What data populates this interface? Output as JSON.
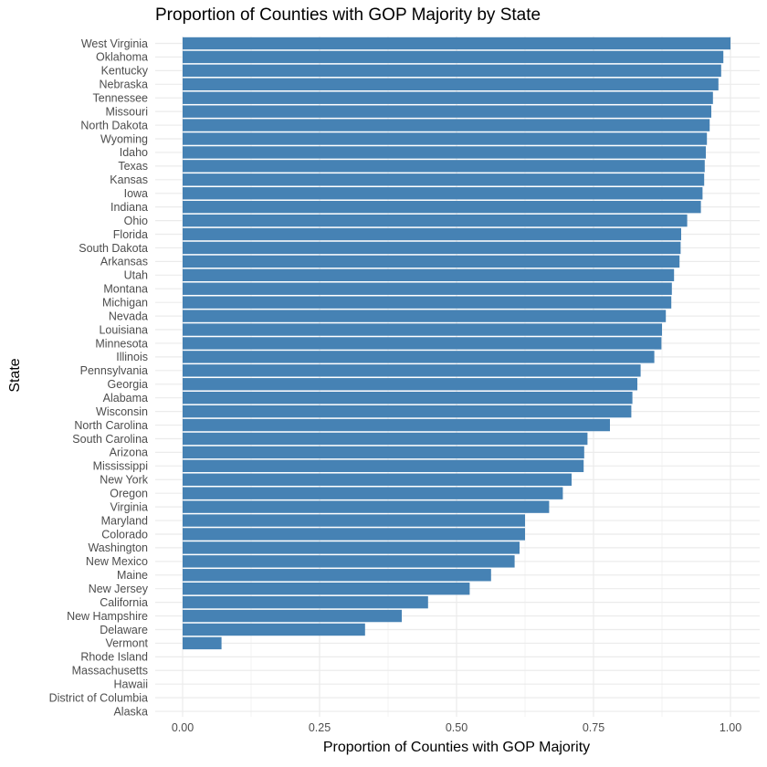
{
  "chart_data": {
    "type": "bar",
    "orientation": "horizontal",
    "title": "Proportion of Counties with GOP Majority by State",
    "xlabel": "Proportion of Counties with GOP Majority",
    "ylabel": "State",
    "xlim": [
      0,
      1
    ],
    "x_ticks": [
      "0.00",
      "0.25",
      "0.50",
      "0.75",
      "1.00"
    ],
    "grid": true,
    "bar_color": "#4682B4",
    "categories": [
      "West Virginia",
      "Oklahoma",
      "Kentucky",
      "Nebraska",
      "Tennessee",
      "Missouri",
      "North Dakota",
      "Wyoming",
      "Idaho",
      "Texas",
      "Kansas",
      "Iowa",
      "Indiana",
      "Ohio",
      "Florida",
      "South Dakota",
      "Arkansas",
      "Utah",
      "Montana",
      "Michigan",
      "Nevada",
      "Louisiana",
      "Minnesota",
      "Illinois",
      "Pennsylvania",
      "Georgia",
      "Alabama",
      "Wisconsin",
      "North Carolina",
      "South Carolina",
      "Arizona",
      "Mississippi",
      "New York",
      "Oregon",
      "Virginia",
      "Maryland",
      "Colorado",
      "Washington",
      "New Mexico",
      "Maine",
      "New Jersey",
      "California",
      "New Hampshire",
      "Delaware",
      "Vermont",
      "Rhode Island",
      "Massachusetts",
      "Hawaii",
      "District of Columbia",
      "Alaska"
    ],
    "values": [
      1.0,
      0.987,
      0.983,
      0.978,
      0.968,
      0.965,
      0.962,
      0.957,
      0.955,
      0.953,
      0.952,
      0.949,
      0.946,
      0.921,
      0.91,
      0.909,
      0.907,
      0.897,
      0.893,
      0.892,
      0.882,
      0.875,
      0.874,
      0.861,
      0.836,
      0.83,
      0.821,
      0.819,
      0.78,
      0.739,
      0.733,
      0.732,
      0.71,
      0.694,
      0.669,
      0.625,
      0.625,
      0.615,
      0.606,
      0.563,
      0.524,
      0.448,
      0.4,
      0.333,
      0.071,
      0.0,
      0.0,
      0.0,
      0.0,
      0.0
    ]
  }
}
